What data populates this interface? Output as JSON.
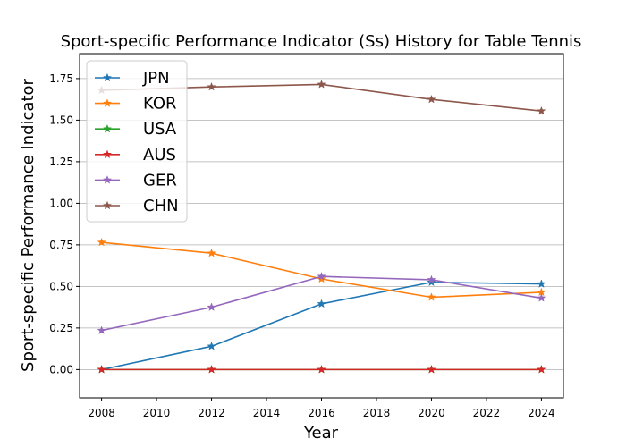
{
  "chart_data": {
    "type": "line",
    "title": "Sport-specific Performance Indicator (Ss) History for Table Tennis",
    "xlabel": "Year",
    "ylabel": "Sport-specific Performance Indicator",
    "x": [
      2008,
      2012,
      2016,
      2020,
      2024
    ],
    "xticks": [
      "2008",
      "2010",
      "2012",
      "2014",
      "2016",
      "2018",
      "2020",
      "2022",
      "2024"
    ],
    "xlim": [
      2007.2,
      2024.8
    ],
    "yticks": [
      "0.00",
      "0.25",
      "0.50",
      "0.75",
      "1.00",
      "1.25",
      "1.50",
      "1.75"
    ],
    "ylim": [
      -0.17,
      1.9
    ],
    "grid": "horizontal",
    "legend_position": "top-left",
    "marker": "star",
    "series": [
      {
        "name": "JPN",
        "color": "#1f77b4",
        "values": [
          0.0,
          0.14,
          0.395,
          0.525,
          0.515
        ]
      },
      {
        "name": "KOR",
        "color": "#ff7f0e",
        "values": [
          0.765,
          0.7,
          0.545,
          0.435,
          0.465
        ]
      },
      {
        "name": "USA",
        "color": "#2ca02c",
        "values": [
          0.0,
          0.0,
          0.0,
          0.0,
          0.0
        ]
      },
      {
        "name": "AUS",
        "color": "#d62728",
        "values": [
          0.0,
          0.0,
          0.0,
          0.0,
          0.0
        ]
      },
      {
        "name": "GER",
        "color": "#9467bd",
        "values": [
          0.235,
          0.375,
          0.56,
          0.54,
          0.43
        ]
      },
      {
        "name": "CHN",
        "color": "#8c564b",
        "values": [
          1.68,
          1.7,
          1.715,
          1.625,
          1.555
        ]
      }
    ]
  }
}
